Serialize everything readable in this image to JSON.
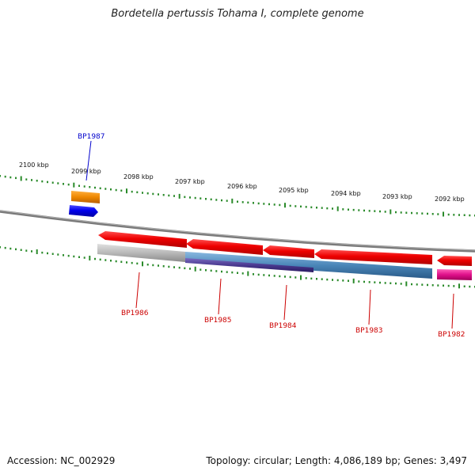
{
  "title": "Bordetella pertussis Tohama I, complete genome",
  "footer": {
    "accession": "Accession: NC_002929",
    "topology": "Topology: circular; Length: 4,086,189 bp; Genes: 3,497"
  },
  "scale_labels": [
    "2100 kbp",
    "2099 kbp",
    "2098 kbp",
    "2097 kbp",
    "2096 kbp",
    "2095 kbp",
    "2094 kbp",
    "2093 kbp",
    "2092 kbp"
  ],
  "genes": [
    {
      "name": "BP1987",
      "color": "#0000cc"
    },
    {
      "name": "BP1986",
      "color": "#cc0000"
    },
    {
      "name": "BP1985",
      "color": "#cc0000"
    },
    {
      "name": "BP1984",
      "color": "#cc0000"
    },
    {
      "name": "BP1983",
      "color": "#cc0000"
    },
    {
      "name": "BP1982",
      "color": "#cc0000"
    }
  ],
  "colors": {
    "backbone": "#7a7a7a",
    "tick": "#2a8a2a",
    "cds_forward": "#0000ee",
    "cds_reverse": "#ee0000",
    "feature_orange": "#ee8800",
    "feature_grey": "#b8b8b8",
    "feature_steelblue": "#4a86b8",
    "feature_purple": "#4a3a90",
    "feature_magenta": "#e0108a"
  }
}
